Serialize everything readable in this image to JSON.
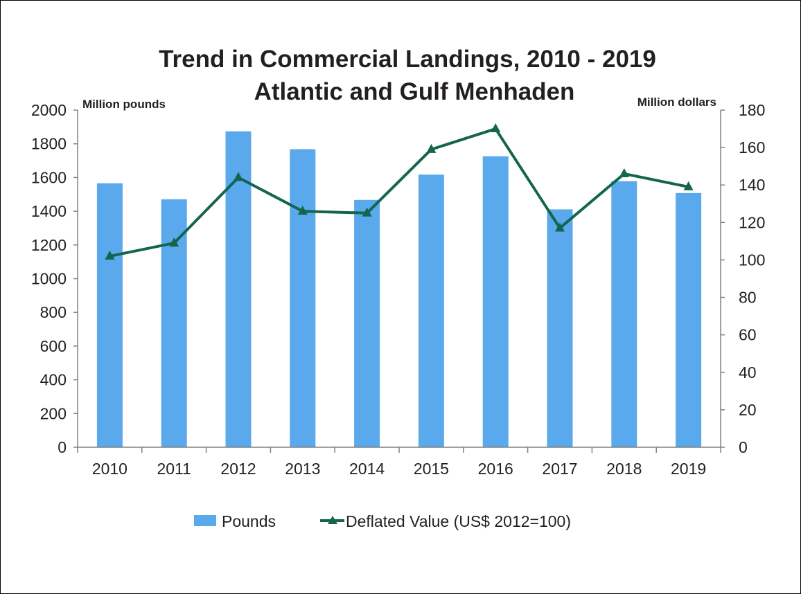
{
  "chart_data": {
    "type": "bar",
    "title": "Trend in Commercial Landings, 2010 - 2019",
    "subtitle": "Atlantic and Gulf Menhaden",
    "ylabel_left": "Million pounds",
    "ylabel_right": "Million dollars",
    "categories": [
      "2010",
      "2011",
      "2012",
      "2013",
      "2014",
      "2015",
      "2016",
      "2017",
      "2018",
      "2019"
    ],
    "series": [
      {
        "name": "Pounds",
        "type": "bar",
        "axis": "left",
        "color": "#5aa9ec",
        "values": [
          1566,
          1471,
          1874,
          1768,
          1467,
          1617,
          1726,
          1411,
          1578,
          1508
        ]
      },
      {
        "name": "Deflated Value (US$ 2012=100)",
        "type": "line",
        "axis": "right",
        "color": "#13654f",
        "marker": "triangle",
        "values": [
          102,
          109,
          144,
          126,
          125,
          159,
          170,
          117,
          146,
          139
        ]
      }
    ],
    "ylim_left": [
      0,
      2000
    ],
    "yticks_left": [
      0,
      200,
      400,
      600,
      800,
      1000,
      1200,
      1400,
      1600,
      1800,
      2000
    ],
    "ylim_right": [
      0,
      180
    ],
    "yticks_right": [
      0,
      20,
      40,
      60,
      80,
      100,
      120,
      140,
      160,
      180
    ],
    "grid": false,
    "legend_position": "bottom"
  }
}
